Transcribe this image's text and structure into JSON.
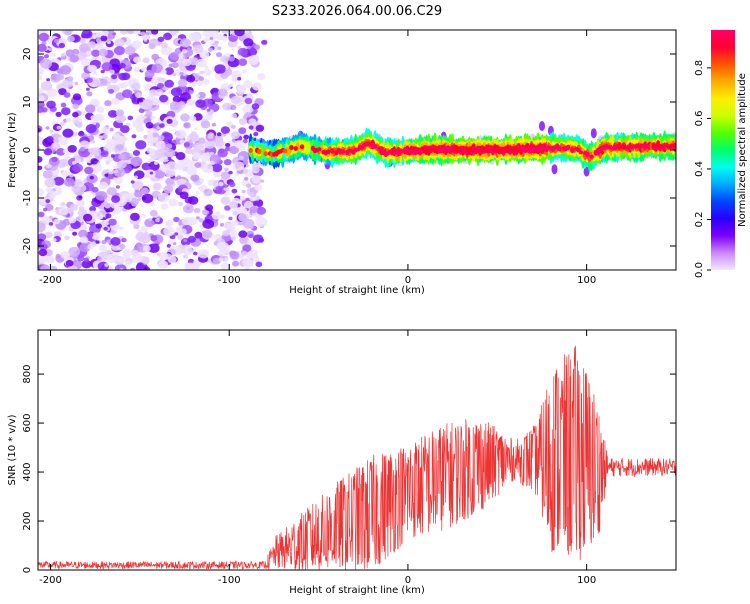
{
  "title": "S233.2026.064.00.06.C29",
  "chart_data": [
    {
      "type": "heatmap",
      "name": "spectrogram",
      "xlabel": "Height of straight line (km)",
      "ylabel": "Frequency (Hz)",
      "xlim": [
        -207,
        150
      ],
      "ylim": [
        -25,
        25
      ],
      "xticks": [
        -200,
        -100,
        0,
        100
      ],
      "yticks": [
        -20,
        -10,
        0,
        10,
        20
      ],
      "noise_region_x": [
        -207,
        -80
      ],
      "signal_start_x": -88,
      "ridge": [
        {
          "x": -88,
          "f": 0.0
        },
        {
          "x": -75,
          "f": -0.8
        },
        {
          "x": -60,
          "f": 0.8
        },
        {
          "x": -45,
          "f": -0.4
        },
        {
          "x": -30,
          "f": -0.2
        },
        {
          "x": -22,
          "f": 1.5
        },
        {
          "x": -12,
          "f": -0.6
        },
        {
          "x": 0,
          "f": -0.3
        },
        {
          "x": 15,
          "f": 0.2
        },
        {
          "x": 30,
          "f": 0.0
        },
        {
          "x": 50,
          "f": 0.0
        },
        {
          "x": 70,
          "f": 0.3
        },
        {
          "x": 85,
          "f": 0.5
        },
        {
          "x": 95,
          "f": 0.2
        },
        {
          "x": 102,
          "f": -1.5
        },
        {
          "x": 110,
          "f": 0.5
        },
        {
          "x": 130,
          "f": 0.7
        },
        {
          "x": 150,
          "f": 0.8
        }
      ],
      "colorbar": {
        "label": "Normalized spectral amplitude",
        "range": [
          0,
          0.95
        ],
        "ticks": [
          "0.0",
          "0.2",
          "0.4",
          "0.6",
          "0.8"
        ],
        "colors": [
          "#f2e6ff",
          "#cc88ff",
          "#7b00ff",
          "#2a00ff",
          "#0044ff",
          "#00aaff",
          "#00ffee",
          "#00ff66",
          "#55ff00",
          "#ccff00",
          "#ffee00",
          "#ffaa00",
          "#ff5500",
          "#ff0033",
          "#ff0066"
        ]
      }
    },
    {
      "type": "line",
      "name": "snr",
      "xlabel": "Height of straight line (km)",
      "ylabel": "SNR (10 * v/v)",
      "xlim": [
        -207,
        150
      ],
      "ylim": [
        0,
        980
      ],
      "xticks": [
        -200,
        -100,
        0,
        100
      ],
      "yticks": [
        0,
        200,
        400,
        600,
        800
      ],
      "color": "#ee3333",
      "envelope": [
        {
          "x": -207,
          "base": 20,
          "amp": 15
        },
        {
          "x": -80,
          "base": 20,
          "amp": 15
        },
        {
          "x": -74,
          "base": 70,
          "amp": 70
        },
        {
          "x": -60,
          "base": 110,
          "amp": 120
        },
        {
          "x": -40,
          "base": 180,
          "amp": 180
        },
        {
          "x": -20,
          "base": 230,
          "amp": 240
        },
        {
          "x": 0,
          "base": 320,
          "amp": 200
        },
        {
          "x": 20,
          "base": 380,
          "amp": 220
        },
        {
          "x": 40,
          "base": 430,
          "amp": 200
        },
        {
          "x": 60,
          "base": 450,
          "amp": 80
        },
        {
          "x": 72,
          "base": 450,
          "amp": 150
        },
        {
          "x": 80,
          "base": 450,
          "amp": 380
        },
        {
          "x": 95,
          "base": 480,
          "amp": 450
        },
        {
          "x": 106,
          "base": 400,
          "amp": 300
        },
        {
          "x": 112,
          "base": 420,
          "amp": 40
        },
        {
          "x": 150,
          "base": 420,
          "amp": 35
        }
      ]
    }
  ]
}
